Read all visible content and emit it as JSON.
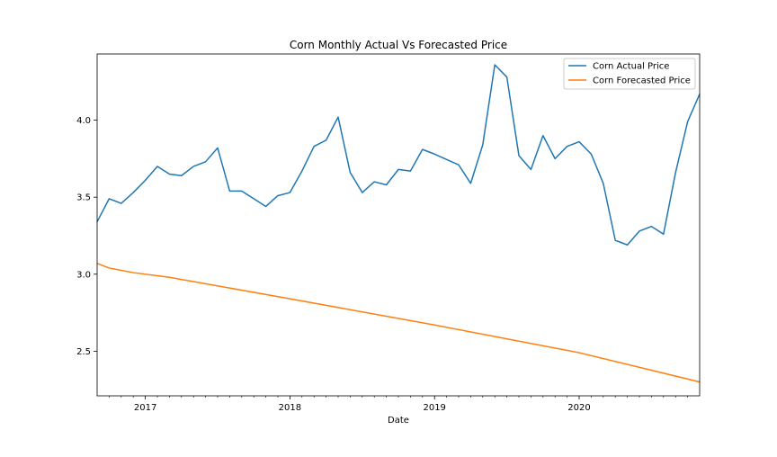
{
  "chart_data": {
    "type": "line",
    "title": "Corn Monthly Actual Vs Forecasted Price",
    "xlabel": "Date",
    "ylabel": "",
    "x_start": "2016-09",
    "x_end": "2020-11",
    "xlim": [
      "2016-09",
      "2020-11"
    ],
    "ylim": [
      2.21,
      4.43
    ],
    "x_ticks": [
      {
        "label": "2017",
        "date": "2017-01"
      },
      {
        "label": "2018",
        "date": "2018-01"
      },
      {
        "label": "2019",
        "date": "2019-01"
      },
      {
        "label": "2020",
        "date": "2020-01"
      }
    ],
    "y_ticks": [
      {
        "label": "2.5",
        "value": 2.5
      },
      {
        "label": "3.0",
        "value": 3.0
      },
      {
        "label": "3.5",
        "value": 3.5
      },
      {
        "label": "4.0",
        "value": 4.0
      }
    ],
    "grid": false,
    "legend_position": "top-right",
    "series": [
      {
        "name": "Corn Actual Price",
        "color": "#1f77b4",
        "points": [
          [
            "2016-09",
            3.34
          ],
          [
            "2016-10",
            3.49
          ],
          [
            "2016-11",
            3.46
          ],
          [
            "2016-12",
            3.53
          ],
          [
            "2017-01",
            3.61
          ],
          [
            "2017-02",
            3.7
          ],
          [
            "2017-03",
            3.65
          ],
          [
            "2017-04",
            3.64
          ],
          [
            "2017-05",
            3.7
          ],
          [
            "2017-06",
            3.73
          ],
          [
            "2017-07",
            3.82
          ],
          [
            "2017-08",
            3.54
          ],
          [
            "2017-09",
            3.54
          ],
          [
            "2017-10",
            3.49
          ],
          [
            "2017-11",
            3.44
          ],
          [
            "2017-12",
            3.51
          ],
          [
            "2018-01",
            3.53
          ],
          [
            "2018-02",
            3.67
          ],
          [
            "2018-03",
            3.83
          ],
          [
            "2018-04",
            3.87
          ],
          [
            "2018-05",
            4.02
          ],
          [
            "2018-06",
            3.66
          ],
          [
            "2018-07",
            3.53
          ],
          [
            "2018-08",
            3.6
          ],
          [
            "2018-09",
            3.58
          ],
          [
            "2018-10",
            3.68
          ],
          [
            "2018-11",
            3.67
          ],
          [
            "2018-12",
            3.81
          ],
          [
            "2019-01",
            3.78
          ],
          [
            "2019-03",
            3.71
          ],
          [
            "2019-04",
            3.59
          ],
          [
            "2019-05",
            3.84
          ],
          [
            "2019-06",
            4.36
          ],
          [
            "2019-07",
            4.28
          ],
          [
            "2019-08",
            3.77
          ],
          [
            "2019-09",
            3.68
          ],
          [
            "2019-10",
            3.9
          ],
          [
            "2019-11",
            3.75
          ],
          [
            "2019-12",
            3.83
          ],
          [
            "2020-01",
            3.86
          ],
          [
            "2020-02",
            3.78
          ],
          [
            "2020-03",
            3.59
          ],
          [
            "2020-04",
            3.22
          ],
          [
            "2020-05",
            3.19
          ],
          [
            "2020-06",
            3.28
          ],
          [
            "2020-07",
            3.31
          ],
          [
            "2020-08",
            3.26
          ],
          [
            "2020-09",
            3.66
          ],
          [
            "2020-10",
            3.99
          ],
          [
            "2020-11",
            4.17
          ]
        ]
      },
      {
        "name": "Corn Forecasted Price",
        "color": "#ff7f0e",
        "points": [
          [
            "2016-09",
            3.07
          ],
          [
            "2016-10",
            3.04
          ],
          [
            "2016-12",
            3.01
          ],
          [
            "2017-03",
            2.98
          ],
          [
            "2018-01",
            2.84
          ],
          [
            "2019-01",
            2.67
          ],
          [
            "2020-01",
            2.49
          ],
          [
            "2020-11",
            2.3
          ]
        ]
      }
    ]
  }
}
